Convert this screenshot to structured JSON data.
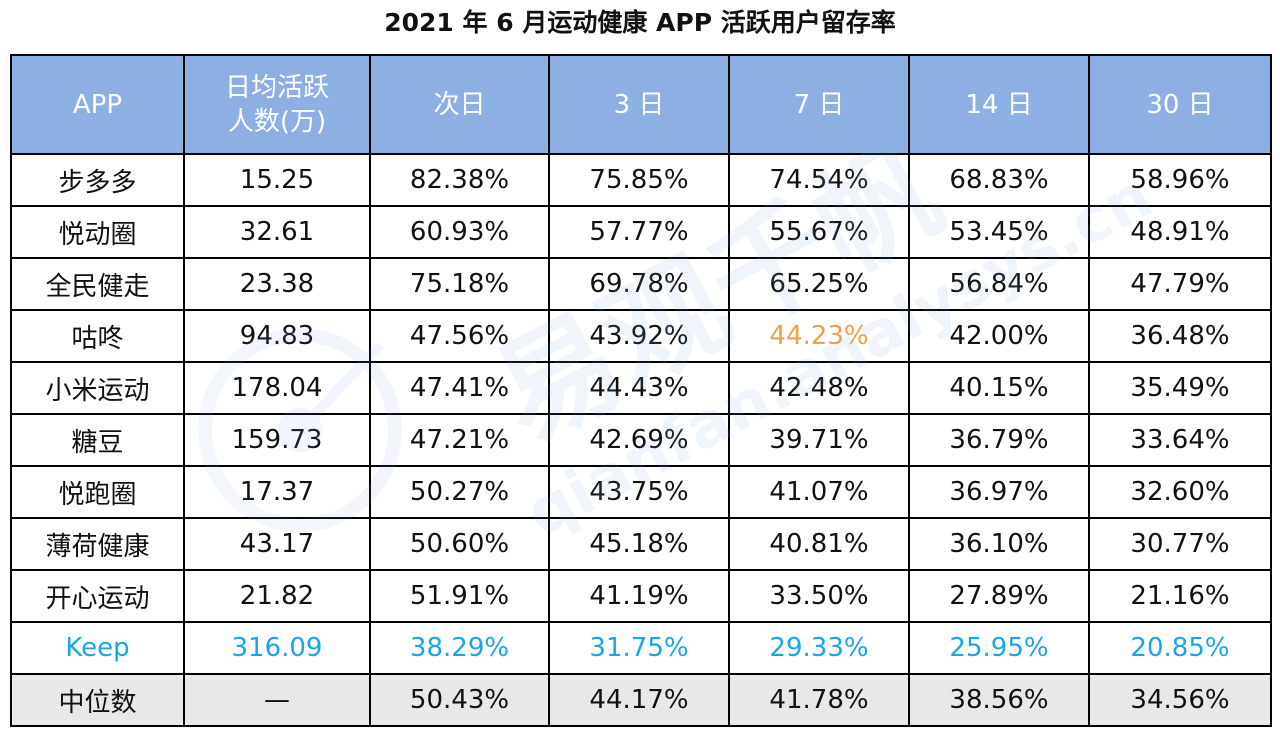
{
  "chart_data": {
    "type": "table",
    "title": "2021 年 6 月运动健康 APP 活跃用户留存率",
    "columns": [
      "APP",
      "日均活跃人数(万)",
      "次日",
      "3 日",
      "7 日",
      "14 日",
      "30 日"
    ],
    "header_lines": {
      "dau_line1": "日均活跃",
      "dau_line2": "人数(万)"
    },
    "rows": [
      {
        "app": "步多多",
        "dau": "15.25",
        "d1": "82.38%",
        "d3": "75.85%",
        "d7": "74.54%",
        "d14": "68.83%",
        "d30": "58.96%"
      },
      {
        "app": "悦动圈",
        "dau": "32.61",
        "d1": "60.93%",
        "d3": "57.77%",
        "d7": "55.67%",
        "d14": "53.45%",
        "d30": "48.91%"
      },
      {
        "app": "全民健走",
        "dau": "23.38",
        "d1": "75.18%",
        "d3": "69.78%",
        "d7": "65.25%",
        "d14": "56.84%",
        "d30": "47.79%"
      },
      {
        "app": "咕咚",
        "dau": "94.83",
        "d1": "47.56%",
        "d3": "43.92%",
        "d7": "44.23%",
        "d14": "42.00%",
        "d30": "36.48%"
      },
      {
        "app": "小米运动",
        "dau": "178.04",
        "d1": "47.41%",
        "d3": "44.43%",
        "d7": "42.48%",
        "d14": "40.15%",
        "d30": "35.49%"
      },
      {
        "app": "糖豆",
        "dau": "159.73",
        "d1": "47.21%",
        "d3": "42.69%",
        "d7": "39.71%",
        "d14": "36.79%",
        "d30": "33.64%"
      },
      {
        "app": "悦跑圈",
        "dau": "17.37",
        "d1": "50.27%",
        "d3": "43.75%",
        "d7": "41.07%",
        "d14": "36.97%",
        "d30": "32.60%"
      },
      {
        "app": "薄荷健康",
        "dau": "43.17",
        "d1": "50.60%",
        "d3": "45.18%",
        "d7": "40.81%",
        "d14": "36.10%",
        "d30": "30.77%"
      },
      {
        "app": "开心运动",
        "dau": "21.82",
        "d1": "51.91%",
        "d3": "41.19%",
        "d7": "33.50%",
        "d14": "27.89%",
        "d30": "21.16%"
      },
      {
        "app": "Keep",
        "dau": "316.09",
        "d1": "38.29%",
        "d3": "31.75%",
        "d7": "29.33%",
        "d14": "25.95%",
        "d30": "20.85%"
      },
      {
        "app": "中位数",
        "dau": "—",
        "d1": "50.43%",
        "d3": "44.17%",
        "d7": "41.78%",
        "d14": "38.56%",
        "d30": "34.56%"
      }
    ],
    "highlights": [
      {
        "row": 3,
        "col": "d7",
        "color": "#f0a04b"
      },
      {
        "row": 9,
        "col": "all",
        "color": "#1aa6e6"
      }
    ],
    "colors": {
      "header_bg": "#8db0e4",
      "header_text": "#ffffff",
      "median_bg": "#e8e8e8"
    }
  },
  "watermark": {
    "text_cn": "易观千帆",
    "text_en": "qianfan.analysys.cn"
  }
}
